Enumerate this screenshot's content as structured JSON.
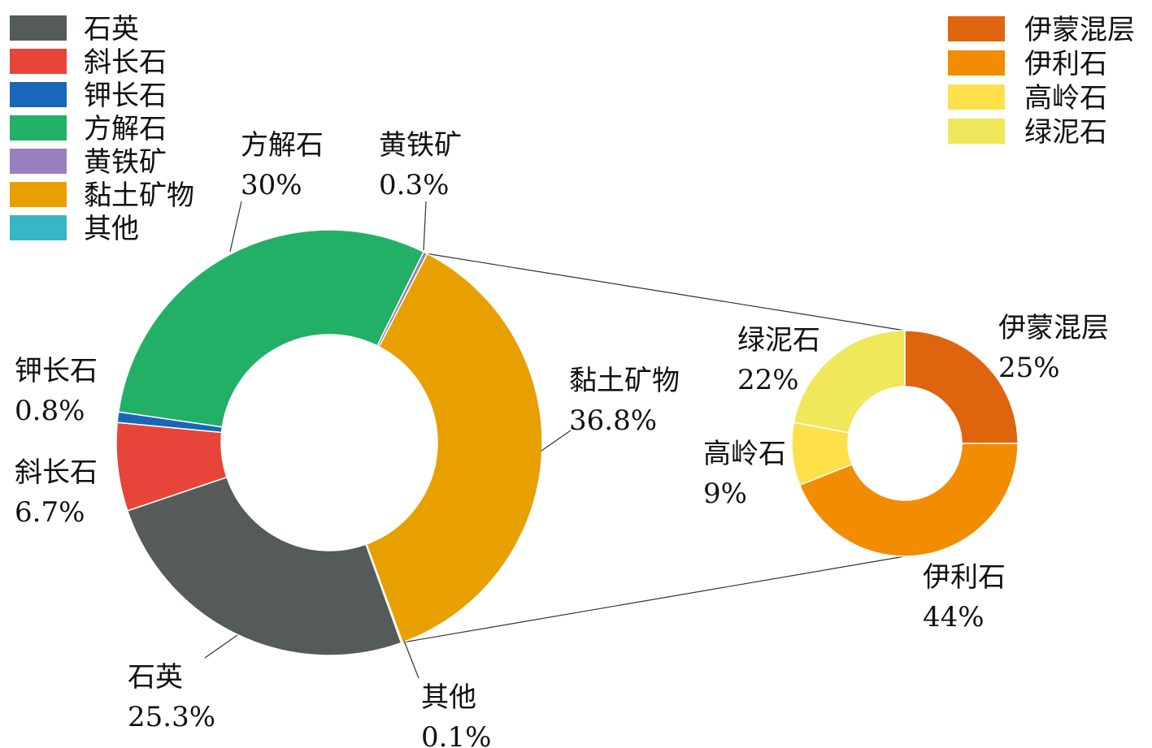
{
  "chart_data": [
    {
      "type": "pie",
      "subtype": "donut",
      "title": "",
      "legend_position": "top-left",
      "slices": [
        {
          "name": "石英",
          "value": 25.3,
          "label": "25.3%",
          "color": "#555a5a"
        },
        {
          "name": "斜长石",
          "value": 6.7,
          "label": "6.7%",
          "color": "#e8453a"
        },
        {
          "name": "钾长石",
          "value": 0.8,
          "label": "0.8%",
          "color": "#1a66b8"
        },
        {
          "name": "方解石",
          "value": 30,
          "label": "30%",
          "color": "#22b066"
        },
        {
          "name": "黄铁矿",
          "value": 0.3,
          "label": "0.3%",
          "color": "#9a7fbf"
        },
        {
          "name": "黏土矿物",
          "value": 36.8,
          "label": "36.8%",
          "color": "#e8a000"
        },
        {
          "name": "其他",
          "value": 0.1,
          "label": "0.1%",
          "color": "#35b7c4"
        }
      ]
    },
    {
      "type": "pie",
      "subtype": "donut",
      "title": "",
      "legend_position": "top-right",
      "breakdown_of": "黏土矿物",
      "slices": [
        {
          "name": "伊蒙混层",
          "value": 25,
          "label": "25%",
          "color": "#df640e"
        },
        {
          "name": "伊利石",
          "value": 44,
          "label": "44%",
          "color": "#f28c00"
        },
        {
          "name": "高岭石",
          "value": 9,
          "label": "9%",
          "color": "#fde04a"
        },
        {
          "name": "绿泥石",
          "value": 22,
          "label": "22%",
          "color": "#eee85a"
        }
      ]
    }
  ]
}
